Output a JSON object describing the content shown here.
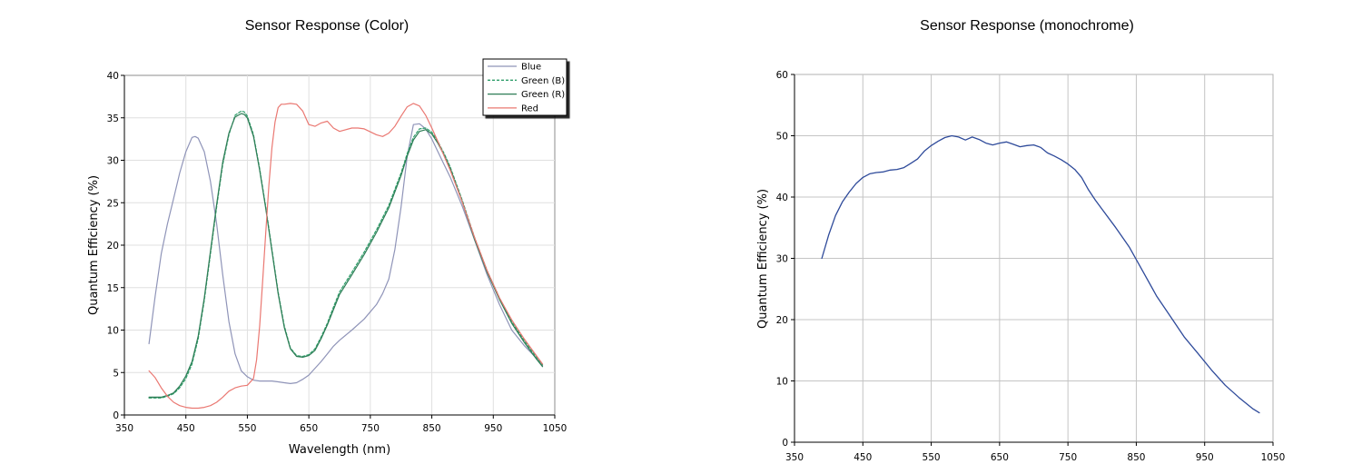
{
  "chart_data": [
    {
      "type": "line",
      "title": "Sensor Response (Color)",
      "xlabel": "Wavelength (nm)",
      "ylabel": "Quantum Efficiency (%)",
      "xlim": [
        350,
        1050
      ],
      "ylim": [
        0,
        40
      ],
      "xticks": [
        350,
        450,
        550,
        650,
        750,
        850,
        950,
        1050
      ],
      "yticks": [
        0,
        5,
        10,
        15,
        20,
        25,
        30,
        35,
        40
      ],
      "grid": true,
      "legend": "top-right",
      "series": [
        {
          "name": "Blue",
          "color": "#8f94b8",
          "dash": "",
          "x": [
            390,
            400,
            410,
            420,
            430,
            440,
            450,
            460,
            465,
            470,
            480,
            490,
            500,
            510,
            520,
            530,
            540,
            550,
            560,
            570,
            580,
            590,
            600,
            610,
            620,
            630,
            640,
            650,
            660,
            670,
            680,
            690,
            700,
            720,
            740,
            760,
            770,
            780,
            790,
            800,
            810,
            820,
            830,
            840,
            850,
            860,
            870,
            880,
            900,
            920,
            940,
            960,
            980,
            1000,
            1020,
            1030
          ],
          "y": [
            8.4,
            14,
            19,
            22.5,
            25.5,
            28.5,
            31,
            32.7,
            32.8,
            32.6,
            31,
            27.5,
            22.5,
            16.5,
            11,
            7.2,
            5.2,
            4.5,
            4.1,
            4.0,
            4.0,
            4.0,
            3.9,
            3.8,
            3.7,
            3.8,
            4.2,
            4.7,
            5.5,
            6.3,
            7.2,
            8.1,
            8.8,
            10,
            11.3,
            13,
            14.3,
            16,
            19.5,
            24.5,
            30.5,
            34.2,
            34.3,
            33.7,
            32.5,
            31,
            29.5,
            28,
            24.5,
            20.5,
            16.5,
            13,
            10,
            8.2,
            6.7,
            5.8
          ]
        },
        {
          "name": "Green (B)",
          "color": "#2e9e6a",
          "dash": "3,2",
          "x": [
            390,
            400,
            410,
            420,
            430,
            440,
            450,
            460,
            470,
            480,
            490,
            500,
            510,
            520,
            530,
            540,
            545,
            550,
            560,
            570,
            580,
            590,
            600,
            610,
            620,
            630,
            640,
            650,
            660,
            670,
            680,
            690,
            700,
            720,
            740,
            760,
            780,
            800,
            810,
            820,
            830,
            840,
            850,
            860,
            870,
            880,
            900,
            920,
            940,
            960,
            980,
            1000,
            1020,
            1030
          ],
          "y": [
            2.0,
            2.0,
            2.0,
            2.2,
            2.5,
            3.2,
            4.3,
            6,
            9,
            13.5,
            19,
            24.5,
            29.5,
            33,
            35.3,
            35.8,
            35.7,
            35.2,
            33,
            29,
            24.5,
            19.5,
            14.5,
            10.5,
            7.9,
            7,
            6.9,
            7.1,
            7.8,
            9.2,
            10.8,
            12.7,
            14.5,
            16.8,
            19.2,
            21.8,
            24.7,
            28.5,
            30.8,
            32.7,
            33.7,
            33.8,
            33.3,
            32.2,
            30.8,
            29.2,
            25.2,
            20.8,
            17,
            13.8,
            11,
            8.8,
            6.8,
            5.9
          ]
        },
        {
          "name": "Green (R)",
          "color": "#2e7d56",
          "dash": "",
          "x": [
            390,
            400,
            410,
            420,
            430,
            440,
            450,
            460,
            470,
            480,
            490,
            500,
            510,
            520,
            530,
            540,
            545,
            550,
            560,
            570,
            580,
            590,
            600,
            610,
            620,
            630,
            640,
            650,
            660,
            670,
            680,
            690,
            700,
            720,
            740,
            760,
            780,
            800,
            810,
            820,
            830,
            840,
            850,
            860,
            870,
            880,
            900,
            920,
            940,
            960,
            980,
            1000,
            1020,
            1030
          ],
          "y": [
            2.1,
            2.1,
            2.1,
            2.3,
            2.6,
            3.4,
            4.6,
            6.3,
            9.3,
            13.8,
            19.3,
            24.8,
            29.8,
            33.2,
            35.1,
            35.5,
            35.4,
            35,
            32.8,
            28.8,
            24.3,
            19.3,
            14.3,
            10.3,
            7.8,
            6.9,
            6.8,
            7.0,
            7.6,
            9.0,
            10.6,
            12.4,
            14.2,
            16.5,
            18.9,
            21.5,
            24.4,
            28.2,
            30.5,
            32.4,
            33.4,
            33.6,
            33.1,
            32.0,
            30.6,
            29.0,
            25.0,
            20.6,
            16.8,
            13.6,
            10.8,
            8.6,
            6.6,
            5.7
          ]
        },
        {
          "name": "Red",
          "color": "#ea7872",
          "dash": "",
          "x": [
            390,
            400,
            410,
            420,
            430,
            440,
            450,
            460,
            470,
            480,
            490,
            500,
            510,
            520,
            530,
            540,
            550,
            560,
            565,
            570,
            575,
            580,
            585,
            590,
            595,
            600,
            605,
            610,
            620,
            630,
            640,
            650,
            660,
            670,
            680,
            690,
            700,
            720,
            730,
            740,
            760,
            770,
            780,
            790,
            800,
            810,
            820,
            830,
            840,
            850,
            860,
            870,
            880,
            900,
            920,
            940,
            960,
            980,
            1000,
            1020,
            1030
          ],
          "y": [
            5.2,
            4.4,
            3.2,
            2.2,
            1.5,
            1.1,
            0.9,
            0.8,
            0.8,
            0.9,
            1.1,
            1.5,
            2.1,
            2.8,
            3.2,
            3.4,
            3.5,
            4.3,
            6.5,
            10.5,
            16,
            21.5,
            27,
            31.5,
            34.5,
            36.2,
            36.6,
            36.6,
            36.7,
            36.6,
            35.8,
            34.2,
            34.0,
            34.4,
            34.6,
            33.8,
            33.4,
            33.8,
            33.8,
            33.7,
            33.0,
            32.8,
            33.2,
            34.0,
            35.2,
            36.3,
            36.7,
            36.4,
            35.3,
            33.8,
            32.2,
            30.5,
            28.8,
            25,
            20.8,
            17,
            13.8,
            11.2,
            9.0,
            7.0,
            6.0
          ]
        }
      ]
    },
    {
      "type": "line",
      "title": "Sensor Response (monochrome)",
      "xlabel": "",
      "ylabel": "Quantum Efficiency (%)",
      "xlim": [
        350,
        1050
      ],
      "ylim": [
        0,
        60
      ],
      "xticks": [
        350,
        450,
        550,
        650,
        750,
        850,
        950,
        1050
      ],
      "yticks": [
        0,
        10,
        20,
        30,
        40,
        50,
        60
      ],
      "grid": true,
      "series": [
        {
          "color": "#2e4a9a",
          "dash": "",
          "x": [
            390,
            400,
            410,
            420,
            430,
            440,
            450,
            460,
            470,
            480,
            490,
            500,
            510,
            520,
            530,
            540,
            550,
            560,
            570,
            580,
            590,
            600,
            610,
            620,
            630,
            640,
            650,
            660,
            670,
            680,
            690,
            700,
            710,
            720,
            730,
            740,
            750,
            760,
            770,
            780,
            790,
            800,
            820,
            840,
            860,
            880,
            900,
            920,
            940,
            960,
            980,
            1000,
            1020,
            1030
          ],
          "y": [
            30,
            33.8,
            37,
            39.2,
            40.8,
            42.2,
            43.2,
            43.8,
            44.0,
            44.1,
            44.4,
            44.5,
            44.8,
            45.5,
            46.2,
            47.5,
            48.4,
            49.1,
            49.7,
            50.0,
            49.8,
            49.3,
            49.8,
            49.4,
            48.8,
            48.5,
            48.8,
            49.0,
            48.6,
            48.2,
            48.4,
            48.5,
            48.1,
            47.2,
            46.7,
            46.1,
            45.4,
            44.5,
            43.2,
            41.2,
            39.5,
            38,
            35,
            31.8,
            27.8,
            23.8,
            20.5,
            17.2,
            14.5,
            11.8,
            9.3,
            7.3,
            5.5,
            4.8
          ]
        }
      ]
    }
  ]
}
